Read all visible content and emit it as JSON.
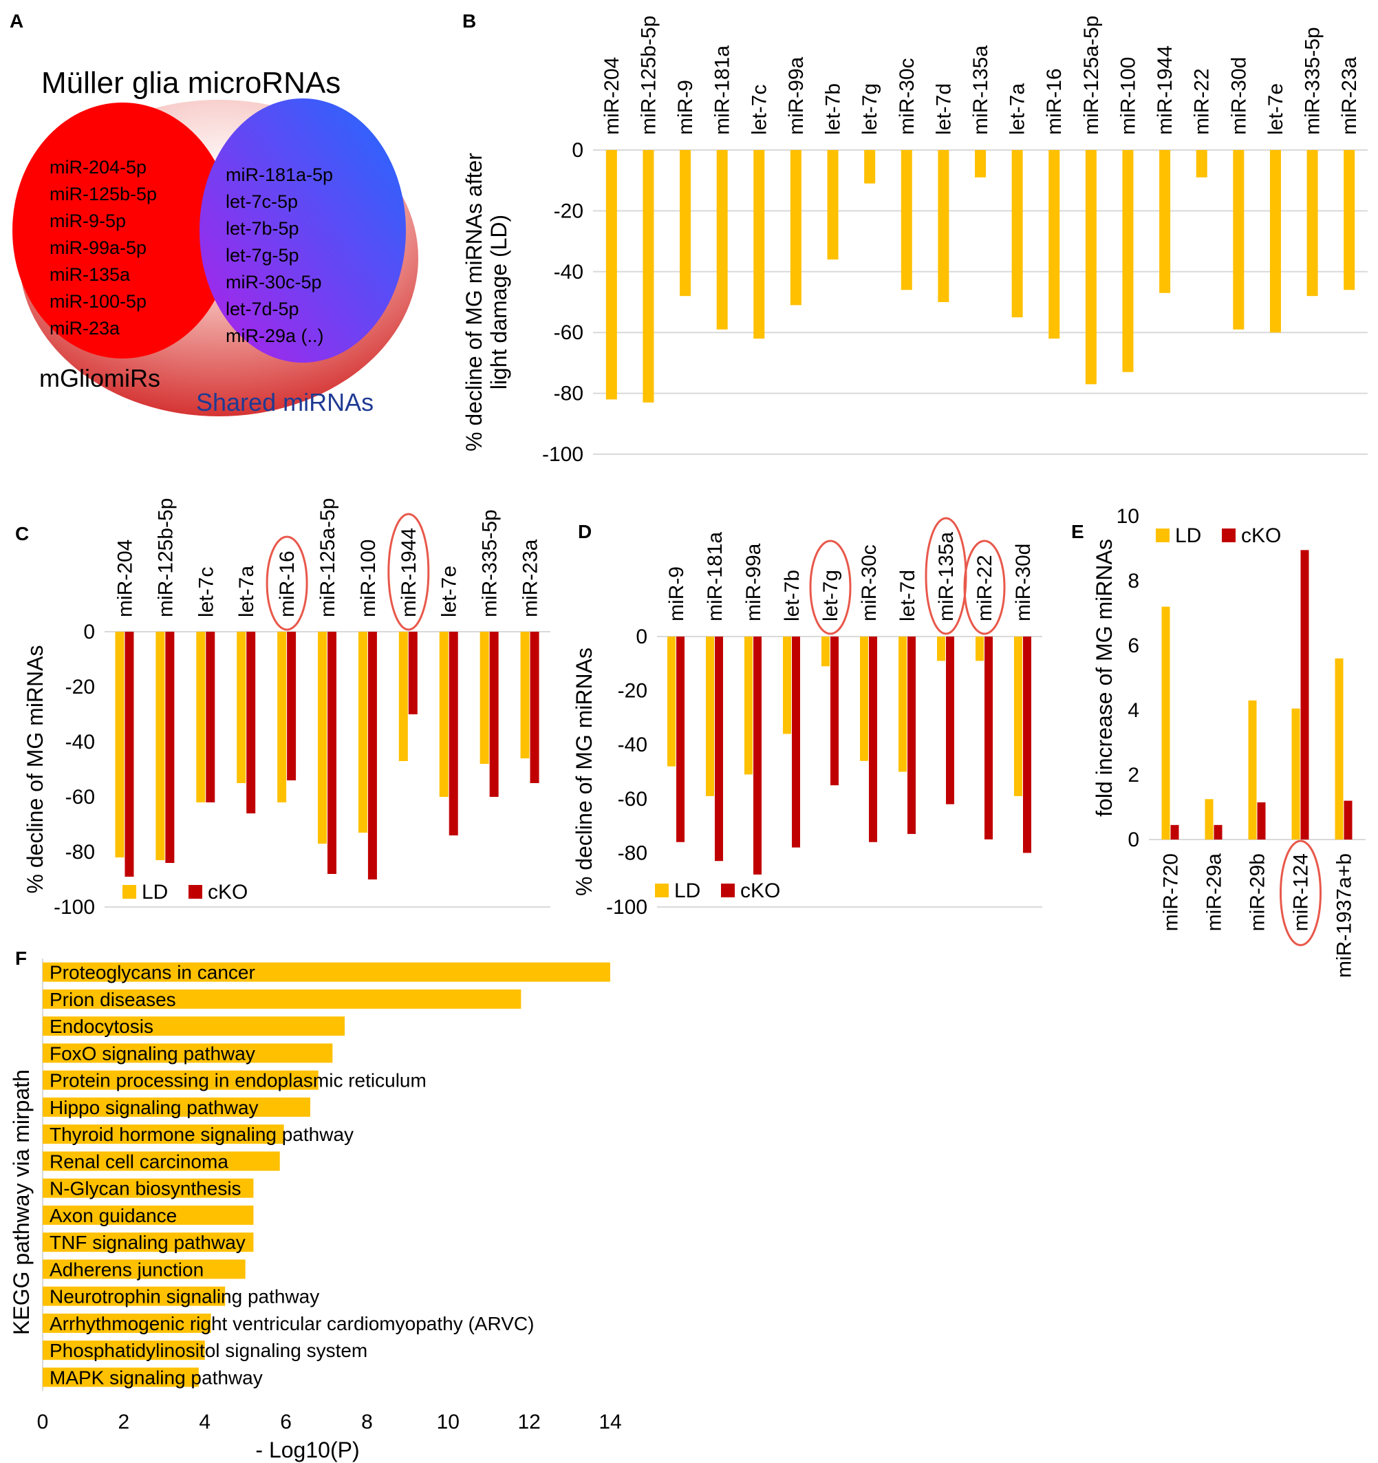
{
  "colors": {
    "ld": "#ffc000",
    "cko": "#c00000",
    "circle": "#e8584a",
    "grid": "#d9d9d9",
    "venn_red": "#ff0000",
    "venn_blue": "#2f5cff",
    "venn_purple": "#a020f0",
    "shared_text": "#1f3a93"
  },
  "panels": {
    "A": {
      "letter": "A",
      "title": "Müller glia microRNAs",
      "mgliomirs_label": "mGliomiRs",
      "shared_label": "Shared miRNAs",
      "mgliomirs": [
        "miR-204-5p",
        "miR-125b-5p",
        "miR-9-5p",
        "miR-99a-5p",
        "miR-135a",
        "miR-100-5p",
        "miR-23a"
      ],
      "shared": [
        "miR-181a-5p",
        "let-7c-5p",
        "let-7b-5p",
        "let-7g-5p",
        "miR-30c-5p",
        "let-7d-5p",
        "miR-29a (..)"
      ]
    },
    "B": {
      "letter": "B"
    },
    "C": {
      "letter": "C"
    },
    "D": {
      "letter": "D"
    },
    "E": {
      "letter": "E"
    },
    "F": {
      "letter": "F"
    }
  },
  "chart_data": [
    {
      "id": "B",
      "type": "bar",
      "categories": [
        "miR-204",
        "miR-125b-5p",
        "miR-9",
        "miR-181a",
        "let-7c",
        "miR-99a",
        "let-7b",
        "let-7g",
        "miR-30c",
        "let-7d",
        "miR-135a",
        "let-7a",
        "miR-16",
        "miR-125a-5p",
        "miR-100",
        "miR-1944",
        "miR-22",
        "miR-30d",
        "let-7e",
        "miR-335-5p",
        "miR-23a"
      ],
      "series": [
        {
          "name": "LD",
          "values": [
            -82,
            -83,
            -48,
            -59,
            -62,
            -51,
            -36,
            -11,
            -46,
            -50,
            -9,
            -55,
            -62,
            -77,
            -73,
            -47,
            -9,
            -59,
            -60,
            -48,
            -46
          ]
        }
      ],
      "ylabel": "% decline of MG miRNAs after light damage (LD)",
      "ylim": [
        -100,
        0
      ],
      "yticks": [
        0,
        -20,
        -40,
        -60,
        -80,
        -100
      ],
      "xlabel": ""
    },
    {
      "id": "C",
      "type": "bar",
      "categories": [
        "miR-204",
        "miR-125b-5p",
        "let-7c",
        "let-7a",
        "miR-16",
        "miR-125a-5p",
        "miR-100",
        "miR-1944",
        "let-7e",
        "miR-335-5p",
        "miR-23a"
      ],
      "series": [
        {
          "name": "LD",
          "values": [
            -82,
            -83,
            -62,
            -55,
            -62,
            -77,
            -73,
            -47,
            -60,
            -48,
            -46
          ]
        },
        {
          "name": "cKO",
          "values": [
            -89,
            -84,
            -62,
            -66,
            -54,
            -88,
            -90,
            -30,
            -74,
            -60,
            -55
          ]
        }
      ],
      "highlighted": [
        "miR-16",
        "miR-1944"
      ],
      "ylabel": "% decline of MG miRNAs",
      "ylim": [
        -100,
        0
      ],
      "yticks": [
        0,
        -20,
        -40,
        -60,
        -80,
        -100
      ],
      "legend": "bottom-left"
    },
    {
      "id": "D",
      "type": "bar",
      "categories": [
        "miR-9",
        "miR-181a",
        "miR-99a",
        "let-7b",
        "let-7g",
        "miR-30c",
        "let-7d",
        "miR-135a",
        "miR-22",
        "miR-30d"
      ],
      "series": [
        {
          "name": "LD",
          "values": [
            -48,
            -59,
            -51,
            -36,
            -11,
            -46,
            -50,
            -9,
            -9,
            -59
          ]
        },
        {
          "name": "cKO",
          "values": [
            -76,
            -83,
            -88,
            -78,
            -55,
            -76,
            -73,
            -62,
            -75,
            -80
          ]
        }
      ],
      "highlighted": [
        "let-7g",
        "miR-135a",
        "miR-22"
      ],
      "ylabel": "% decline of MG miRNAs",
      "ylim": [
        -100,
        0
      ],
      "yticks": [
        0,
        -20,
        -40,
        -60,
        -80,
        -100
      ],
      "legend": "bottom-left"
    },
    {
      "id": "E",
      "type": "bar",
      "categories": [
        "miR-720",
        "miR-29a",
        "miR-29b",
        "miR-124",
        "miR-1937a+b"
      ],
      "series": [
        {
          "name": "LD",
          "values": [
            7.2,
            1.25,
            4.3,
            4.05,
            5.6
          ]
        },
        {
          "name": "cKO",
          "values": [
            0.45,
            0.45,
            1.15,
            8.95,
            1.2
          ]
        }
      ],
      "highlighted": [
        "miR-124"
      ],
      "ylabel": "fold increase of MG miRNAs",
      "ylim": [
        0,
        10
      ],
      "yticks": [
        0,
        2,
        4,
        6,
        8,
        10
      ],
      "legend": "top-left"
    },
    {
      "id": "F",
      "type": "bar",
      "orientation": "horizontal",
      "categories": [
        "Proteoglycans in cancer",
        "Prion diseases",
        "Endocytosis",
        "FoxO signaling pathway",
        "Protein processing in endoplasmic reticulum",
        "Hippo signaling pathway",
        "Thyroid hormone signaling pathway",
        "Renal cell carcinoma",
        "N-Glycan biosynthesis",
        "Axon guidance",
        "TNF signaling pathway",
        "Adherens junction",
        "Neurotrophin signaling pathway",
        "Arrhythmogenic right ventricular cardiomyopathy (ARVC)",
        "Phosphatidylinositol signaling system",
        "MAPK signaling pathway"
      ],
      "values": [
        14.0,
        11.8,
        7.45,
        7.15,
        6.8,
        6.6,
        5.95,
        5.85,
        5.2,
        5.2,
        5.2,
        5.0,
        4.5,
        4.15,
        4.0,
        3.85
      ],
      "xlabel": "- Log10(P)",
      "ylabel": "KEGG pathway via mirpath",
      "xlim": [
        0,
        14
      ],
      "xticks": [
        0,
        2,
        4,
        6,
        8,
        10,
        12,
        14
      ]
    }
  ]
}
